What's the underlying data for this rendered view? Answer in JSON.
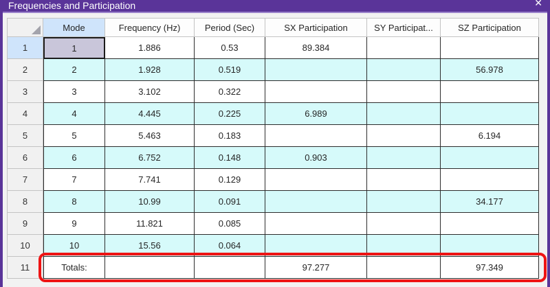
{
  "window": {
    "title": "Frequencies and Participation",
    "close_icon": "✕"
  },
  "colors": {
    "titlebar_bg": "#5a3499",
    "window_border": "#5a3499",
    "column_highlight": "#cfe4fb",
    "row_header_bg": "#f1f1f1",
    "zebra_cyan": "#d6fafa",
    "selected_cell_bg": "#c9c6da",
    "grid_line_dark": "#2c2c2c",
    "grid_line_light": "#c3c3c3",
    "annotation_red": "#ee1414"
  },
  "grid": {
    "corner_icon": "select-all-triangle",
    "columns": [
      "Mode",
      "Frequency (Hz)",
      "Period (Sec)",
      "SX Participation",
      "SY Participat...",
      "SZ Participation"
    ],
    "rows": [
      {
        "num": "1",
        "mode": "1",
        "freq": "1.886",
        "period": "0.53",
        "sx": "89.384",
        "sy": "",
        "sz": ""
      },
      {
        "num": "2",
        "mode": "2",
        "freq": "1.928",
        "period": "0.519",
        "sx": "",
        "sy": "",
        "sz": "56.978"
      },
      {
        "num": "3",
        "mode": "3",
        "freq": "3.102",
        "period": "0.322",
        "sx": "",
        "sy": "",
        "sz": ""
      },
      {
        "num": "4",
        "mode": "4",
        "freq": "4.445",
        "period": "0.225",
        "sx": "6.989",
        "sy": "",
        "sz": ""
      },
      {
        "num": "5",
        "mode": "5",
        "freq": "5.463",
        "period": "0.183",
        "sx": "",
        "sy": "",
        "sz": "6.194"
      },
      {
        "num": "6",
        "mode": "6",
        "freq": "6.752",
        "period": "0.148",
        "sx": "0.903",
        "sy": "",
        "sz": ""
      },
      {
        "num": "7",
        "mode": "7",
        "freq": "7.741",
        "period": "0.129",
        "sx": "",
        "sy": "",
        "sz": ""
      },
      {
        "num": "8",
        "mode": "8",
        "freq": "10.99",
        "period": "0.091",
        "sx": "",
        "sy": "",
        "sz": "34.177"
      },
      {
        "num": "9",
        "mode": "9",
        "freq": "11.821",
        "period": "0.085",
        "sx": "",
        "sy": "",
        "sz": ""
      },
      {
        "num": "10",
        "mode": "10",
        "freq": "15.56",
        "period": "0.064",
        "sx": "",
        "sy": "",
        "sz": ""
      },
      {
        "num": "11",
        "mode": "Totals:",
        "freq": "",
        "period": "",
        "sx": "97.277",
        "sy": "",
        "sz": "97.349"
      }
    ],
    "selected_cell": {
      "row": "1",
      "column": "Mode",
      "value": "1"
    }
  },
  "annotation": {
    "shape": "red-rounded-rectangle",
    "target": "totals-row"
  }
}
